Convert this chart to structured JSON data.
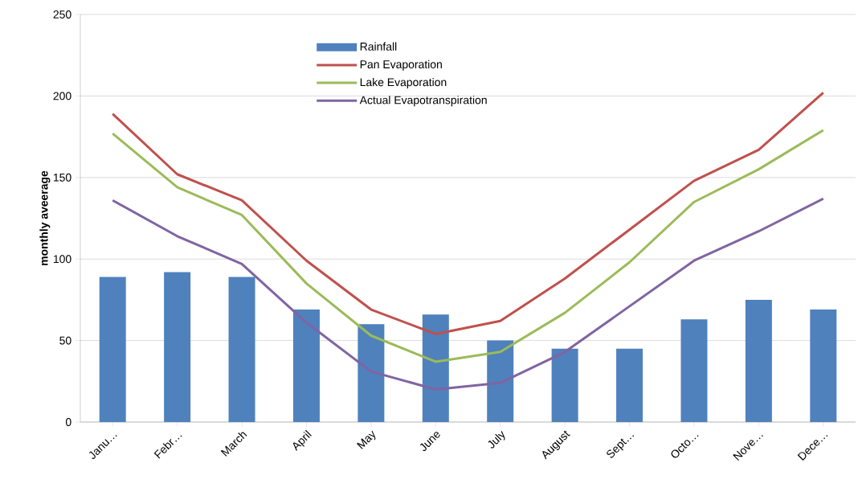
{
  "chart_data": {
    "type": "bar",
    "ylabel": "monthly aveerage",
    "categories": [
      "Janu…",
      "Febr…",
      "March",
      "April",
      "May",
      "June",
      "July",
      "August",
      "Sept…",
      "Octo…",
      "Nove…",
      "Dece…"
    ],
    "series": [
      {
        "name": "Rainfall",
        "color": "#4f81bd",
        "values": [
          89,
          92,
          89,
          69,
          60,
          66,
          50,
          45,
          45,
          63,
          75,
          69
        ]
      },
      {
        "name": "Pan Evaporation",
        "type": "line",
        "color": "#c0504d",
        "values": [
          189,
          152,
          136,
          99,
          69,
          54,
          62,
          88,
          118,
          148,
          167,
          202
        ]
      },
      {
        "name": "Lake Evaporation",
        "type": "line",
        "color": "#9bbb59",
        "values": [
          177,
          144,
          127,
          85,
          53,
          37,
          43,
          67,
          98,
          135,
          155,
          179
        ]
      },
      {
        "name": "Actual Evapotranspiration",
        "type": "line",
        "color": "#8064a2",
        "values": [
          136,
          114,
          97,
          61,
          31,
          20,
          24,
          43,
          71,
          99,
          117,
          137
        ]
      }
    ],
    "ylim": [
      0,
      250
    ],
    "yticks": [
      0,
      50,
      100,
      150,
      200,
      250
    ],
    "grid": "y",
    "legend": "top",
    "marker": "none",
    "line_style": "solid"
  }
}
